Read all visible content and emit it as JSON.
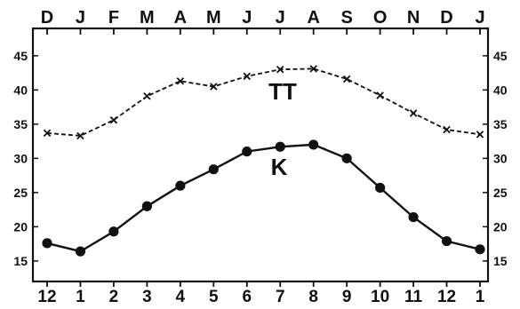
{
  "chart_data": {
    "type": "line",
    "title": "",
    "xlabel": "",
    "ylabel": "",
    "top_labels": [
      "D",
      "J",
      "F",
      "M",
      "A",
      "M",
      "J",
      "J",
      "A",
      "S",
      "O",
      "N",
      "D",
      "J"
    ],
    "categories": [
      "12",
      "1",
      "2",
      "3",
      "4",
      "5",
      "6",
      "7",
      "8",
      "9",
      "10",
      "11",
      "12",
      "1"
    ],
    "yticks": [
      15,
      20,
      25,
      30,
      35,
      40,
      45
    ],
    "ylim": [
      12,
      49
    ],
    "grid": false,
    "series": [
      {
        "name": "TT",
        "style": "dashed",
        "marker": "x",
        "values": [
          33.7,
          33.3,
          35.6,
          39.1,
          41.3,
          40.5,
          42.0,
          43.0,
          43.1,
          41.6,
          39.2,
          36.6,
          34.2,
          33.5
        ]
      },
      {
        "name": "K",
        "style": "solid",
        "marker": "circle",
        "values": [
          17.6,
          16.4,
          19.3,
          23.0,
          26.0,
          28.4,
          31.0,
          31.7,
          32.0,
          30.0,
          25.7,
          21.4,
          17.9,
          16.7
        ]
      }
    ]
  }
}
